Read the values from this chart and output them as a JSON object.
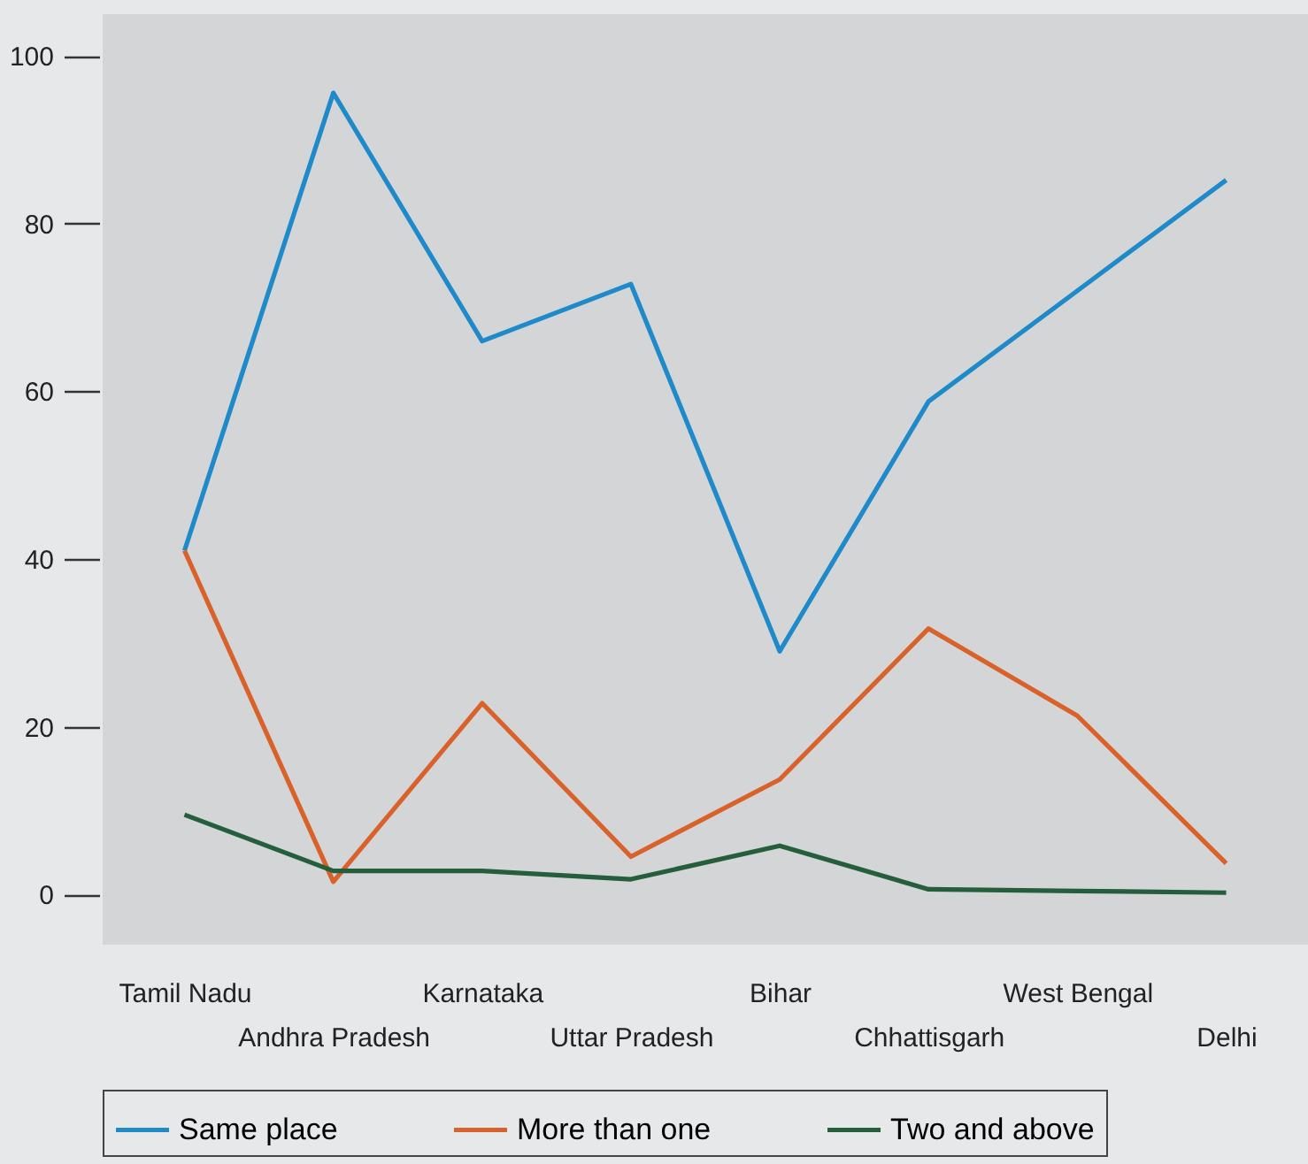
{
  "chart_data": {
    "type": "line",
    "categories": [
      "Tamil Nadu",
      "Andhra Pradesh",
      "Karnataka",
      "Uttar Pradesh",
      "Bihar",
      "Chhattisgarh",
      "West Bengal",
      "Delhi"
    ],
    "series": [
      {
        "name": "Same place",
        "color": "#1f8ac9",
        "values": [
          41,
          95.6,
          66,
          72.8,
          29,
          58.8,
          72,
          85.2
        ]
      },
      {
        "name": "More than one",
        "color": "#d9622b",
        "values": [
          41,
          1.5,
          22.8,
          4.5,
          13.7,
          31.7,
          21.3,
          3.7
        ]
      },
      {
        "name": "Two and above",
        "color": "#255e3a",
        "values": [
          9.5,
          2.8,
          2.8,
          1.8,
          5.8,
          0.6,
          0.4,
          0.2
        ]
      }
    ],
    "ylim": [
      -6,
      105
    ],
    "yticks": [
      0,
      20,
      40,
      60,
      80,
      100
    ],
    "grid": false,
    "legend": "bottom",
    "marker": "none",
    "line_style": "solid"
  }
}
